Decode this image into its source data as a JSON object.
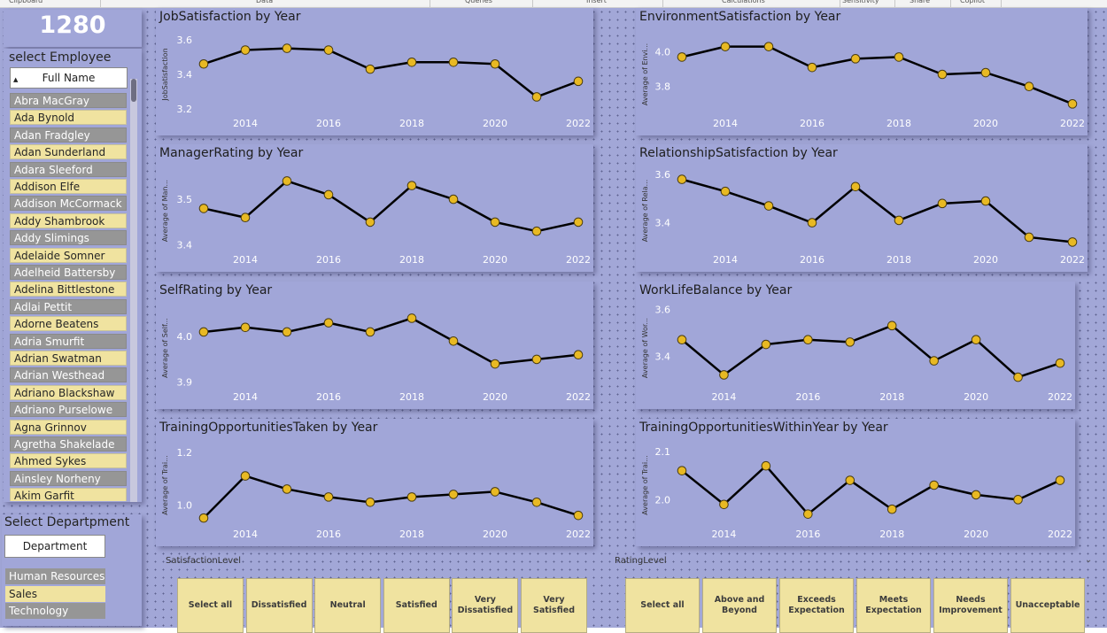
{
  "ribbon": {
    "groups": [
      "Clipboard",
      "Data",
      "Queries",
      "Insert",
      "Calculations",
      "Sensitivity",
      "Share",
      "Copilot"
    ]
  },
  "kpi": {
    "value": "1280"
  },
  "employee_slicer": {
    "title": "select Employee",
    "header": "Full Name",
    "items": [
      "Abra MacGray",
      "Ada Bynold",
      "Adan Fradgley",
      "Adan Sunderland",
      "Adara Sleeford",
      "Addison Elfe",
      "Addison McCormack",
      "Addy Shambrook",
      "Addy Slimings",
      "Adelaide Somner",
      "Adelheid Battersby",
      "Adelina Bittlestone",
      "Adlai Pettit",
      "Adorne Beatens",
      "Adria Smurfit",
      "Adrian Swatman",
      "Adrian Westhead",
      "Adriano Blackshaw",
      "Adriano Purselowe",
      "Agna Grinnov",
      "Agretha Shakelade",
      "Ahmed Sykes",
      "Ainsley Norheny",
      "Akim Garfit"
    ]
  },
  "department_slicer": {
    "title": "Select Departpment",
    "header": "Department",
    "items": [
      "Human Resources",
      "Sales",
      "Technology"
    ]
  },
  "chart_data": [
    {
      "type": "line",
      "title": "JobSatisfaction by Year",
      "ylabel": "JobSatisfaction",
      "x": [
        2013,
        2014,
        2015,
        2016,
        2017,
        2018,
        2019,
        2020,
        2021,
        2022
      ],
      "values": [
        3.46,
        3.54,
        3.55,
        3.54,
        3.43,
        3.47,
        3.47,
        3.46,
        3.27,
        3.36
      ],
      "yticks": [
        "3.2",
        "3.4",
        "3.6"
      ],
      "ylim": [
        3.15,
        3.65
      ],
      "xticks": [
        "2014",
        "2016",
        "2018",
        "2020",
        "2022"
      ]
    },
    {
      "type": "line",
      "title": "EnvironmentSatisfaction by Year",
      "ylabel": "Average of Envi...",
      "x": [
        2013,
        2014,
        2015,
        2016,
        2017,
        2018,
        2019,
        2020,
        2021,
        2022
      ],
      "values": [
        3.97,
        4.03,
        4.03,
        3.91,
        3.96,
        3.97,
        3.87,
        3.88,
        3.8,
        3.7
      ],
      "yticks": [
        "3.8",
        "4.0"
      ],
      "ylim": [
        3.62,
        4.12
      ],
      "xticks": [
        "2014",
        "2016",
        "2018",
        "2020",
        "2022"
      ]
    },
    {
      "type": "line",
      "title": "ManagerRating by Year",
      "ylabel": "Average of Man...",
      "x": [
        2013,
        2014,
        2015,
        2016,
        2017,
        2018,
        2019,
        2020,
        2021,
        2022
      ],
      "values": [
        3.48,
        3.46,
        3.54,
        3.51,
        3.45,
        3.53,
        3.5,
        3.45,
        3.43,
        3.45
      ],
      "yticks": [
        "3.4",
        "3.5"
      ],
      "ylim": [
        3.38,
        3.57
      ],
      "xticks": [
        "2014",
        "2016",
        "2018",
        "2020",
        "2022"
      ]
    },
    {
      "type": "line",
      "title": "RelationshipSatisfaction by Year",
      "ylabel": "Average of Rela...",
      "x": [
        2013,
        2014,
        2015,
        2016,
        2017,
        2018,
        2019,
        2020,
        2021,
        2022
      ],
      "values": [
        3.58,
        3.53,
        3.47,
        3.4,
        3.55,
        3.41,
        3.48,
        3.49,
        3.34,
        3.32
      ],
      "yticks": [
        "3.4",
        "3.6"
      ],
      "ylim": [
        3.27,
        3.63
      ],
      "xticks": [
        "2014",
        "2016",
        "2018",
        "2020",
        "2022"
      ]
    },
    {
      "type": "line",
      "title": "SelfRating by Year",
      "ylabel": "Average of Self...",
      "x": [
        2013,
        2014,
        2015,
        2016,
        2017,
        2018,
        2019,
        2020,
        2021,
        2022
      ],
      "values": [
        4.01,
        4.02,
        4.01,
        4.03,
        4.01,
        4.04,
        3.99,
        3.94,
        3.95,
        3.96
      ],
      "yticks": [
        "3.9",
        "4.0"
      ],
      "ylim": [
        3.88,
        4.07
      ],
      "xticks": [
        "2014",
        "2016",
        "2018",
        "2020",
        "2022"
      ]
    },
    {
      "type": "line",
      "title": "WorkLifeBalance by Year",
      "ylabel": "Average of Wor...",
      "x": [
        2013,
        2014,
        2015,
        2016,
        2017,
        2018,
        2019,
        2020,
        2021,
        2022
      ],
      "values": [
        3.47,
        3.32,
        3.45,
        3.47,
        3.46,
        3.53,
        3.38,
        3.47,
        3.31,
        3.37
      ],
      "yticks": [
        "3.4",
        "3.6"
      ],
      "ylim": [
        3.25,
        3.62
      ],
      "xticks": [
        "2014",
        "2016",
        "2018",
        "2020",
        "2022"
      ]
    },
    {
      "type": "line",
      "title": "TrainingOpportunitiesTaken by Year",
      "ylabel": "Average of Trai...",
      "x": [
        2013,
        2014,
        2015,
        2016,
        2017,
        2018,
        2019,
        2020,
        2021,
        2022
      ],
      "values": [
        0.95,
        1.11,
        1.06,
        1.03,
        1.01,
        1.03,
        1.04,
        1.05,
        1.01,
        0.96
      ],
      "yticks": [
        "1.0",
        "1.2"
      ],
      "ylim": [
        0.91,
        1.24
      ],
      "xticks": [
        "2014",
        "2016",
        "2018",
        "2020",
        "2022"
      ]
    },
    {
      "type": "line",
      "title": "TrainingOpportunitiesWithinYear by Year",
      "ylabel": "Average of Trai...",
      "x": [
        2013,
        2014,
        2015,
        2016,
        2017,
        2018,
        2019,
        2020,
        2021,
        2022
      ],
      "values": [
        2.06,
        1.99,
        2.07,
        1.97,
        2.04,
        1.98,
        2.03,
        2.01,
        2.0,
        2.04
      ],
      "yticks": [
        "2.0",
        "2.1"
      ],
      "ylim": [
        1.94,
        2.12
      ],
      "xticks": [
        "2014",
        "2016",
        "2018",
        "2020",
        "2022"
      ]
    }
  ],
  "satisfaction_slicer": {
    "title": "SatisfactionLevel",
    "buttons": [
      "Select all",
      "Dissatisfied",
      "Neutral",
      "Satisfied",
      "Very Dissatisfied",
      "Very Satisfied"
    ]
  },
  "rating_slicer": {
    "title": "RatingLevel",
    "buttons": [
      "Select all",
      "Above and Beyond",
      "Exceeds Expectation",
      "Meets Expectation",
      "Needs Improvement",
      "Unacceptable"
    ]
  },
  "colors": {
    "marker": "#e8b923",
    "line": "#000000",
    "card": "#a1a6d8",
    "yellow_item": "#f0e3a0",
    "gray_item": "#969696"
  }
}
